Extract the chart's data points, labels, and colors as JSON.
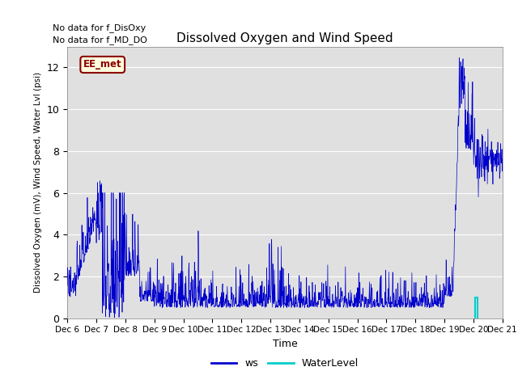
{
  "title": "Dissolved Oxygen and Wind Speed",
  "ylabel": "Dissolved Oxygen (mV), Wind Speed, Water Lvl (psi)",
  "xlabel": "Time",
  "text_line1": "No data for f_DisOxy",
  "text_line2": "No data for f_MD_DO",
  "annotation_label": "EE_met",
  "ylim": [
    0,
    13
  ],
  "yticks": [
    0,
    2,
    4,
    6,
    8,
    10,
    12
  ],
  "ws_color": "#0000cc",
  "water_color": "#00cccc",
  "bg_color": "#e0e0e0",
  "xtick_labels": [
    "Dec 6",
    "Dec 7",
    "Dec 8",
    "Dec 9",
    "Dec 10",
    "Dec 11",
    "Dec 12",
    "Dec 13",
    "Dec 14",
    "Dec 15",
    "Dec 16",
    "Dec 17",
    "Dec 18",
    "Dec 19",
    "Dec 20",
    "Dec 21"
  ],
  "n_points": 1500,
  "seed": 42
}
